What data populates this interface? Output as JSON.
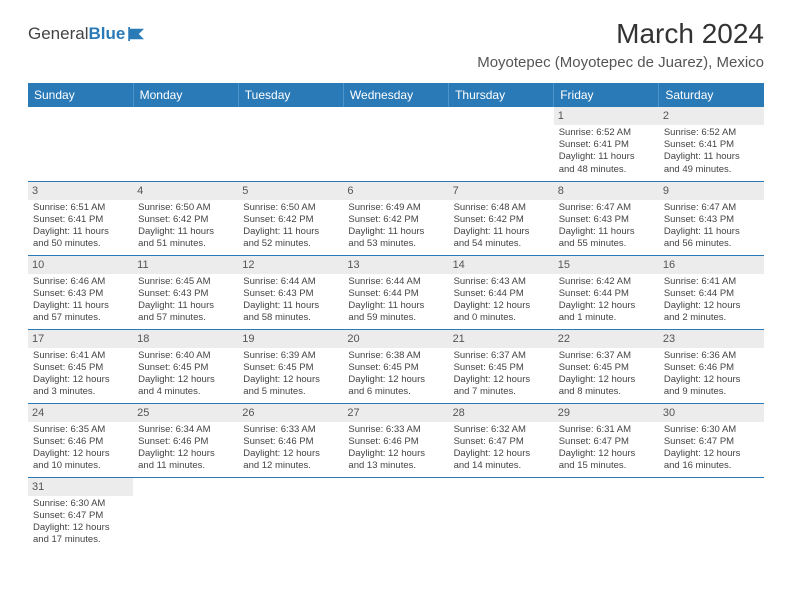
{
  "logo": {
    "text_general": "General",
    "text_blue": "Blue"
  },
  "header": {
    "title": "March 2024",
    "location": "Moyotepec (Moyotepec de Juarez), Mexico"
  },
  "days": [
    "Sunday",
    "Monday",
    "Tuesday",
    "Wednesday",
    "Thursday",
    "Friday",
    "Saturday"
  ],
  "colors": {
    "header_bg": "#2a7ab8",
    "header_text": "#ffffff",
    "row_border": "#2a7ab8",
    "daynum_bg": "#ececec",
    "text": "#444444"
  },
  "weeks": [
    [
      {
        "n": "",
        "empty": true
      },
      {
        "n": "",
        "empty": true
      },
      {
        "n": "",
        "empty": true
      },
      {
        "n": "",
        "empty": true
      },
      {
        "n": "",
        "empty": true
      },
      {
        "n": "1",
        "sr": "Sunrise: 6:52 AM",
        "ss": "Sunset: 6:41 PM",
        "dl1": "Daylight: 11 hours",
        "dl2": "and 48 minutes."
      },
      {
        "n": "2",
        "sr": "Sunrise: 6:52 AM",
        "ss": "Sunset: 6:41 PM",
        "dl1": "Daylight: 11 hours",
        "dl2": "and 49 minutes."
      }
    ],
    [
      {
        "n": "3",
        "sr": "Sunrise: 6:51 AM",
        "ss": "Sunset: 6:41 PM",
        "dl1": "Daylight: 11 hours",
        "dl2": "and 50 minutes."
      },
      {
        "n": "4",
        "sr": "Sunrise: 6:50 AM",
        "ss": "Sunset: 6:42 PM",
        "dl1": "Daylight: 11 hours",
        "dl2": "and 51 minutes."
      },
      {
        "n": "5",
        "sr": "Sunrise: 6:50 AM",
        "ss": "Sunset: 6:42 PM",
        "dl1": "Daylight: 11 hours",
        "dl2": "and 52 minutes."
      },
      {
        "n": "6",
        "sr": "Sunrise: 6:49 AM",
        "ss": "Sunset: 6:42 PM",
        "dl1": "Daylight: 11 hours",
        "dl2": "and 53 minutes."
      },
      {
        "n": "7",
        "sr": "Sunrise: 6:48 AM",
        "ss": "Sunset: 6:42 PM",
        "dl1": "Daylight: 11 hours",
        "dl2": "and 54 minutes."
      },
      {
        "n": "8",
        "sr": "Sunrise: 6:47 AM",
        "ss": "Sunset: 6:43 PM",
        "dl1": "Daylight: 11 hours",
        "dl2": "and 55 minutes."
      },
      {
        "n": "9",
        "sr": "Sunrise: 6:47 AM",
        "ss": "Sunset: 6:43 PM",
        "dl1": "Daylight: 11 hours",
        "dl2": "and 56 minutes."
      }
    ],
    [
      {
        "n": "10",
        "sr": "Sunrise: 6:46 AM",
        "ss": "Sunset: 6:43 PM",
        "dl1": "Daylight: 11 hours",
        "dl2": "and 57 minutes."
      },
      {
        "n": "11",
        "sr": "Sunrise: 6:45 AM",
        "ss": "Sunset: 6:43 PM",
        "dl1": "Daylight: 11 hours",
        "dl2": "and 57 minutes."
      },
      {
        "n": "12",
        "sr": "Sunrise: 6:44 AM",
        "ss": "Sunset: 6:43 PM",
        "dl1": "Daylight: 11 hours",
        "dl2": "and 58 minutes."
      },
      {
        "n": "13",
        "sr": "Sunrise: 6:44 AM",
        "ss": "Sunset: 6:44 PM",
        "dl1": "Daylight: 11 hours",
        "dl2": "and 59 minutes."
      },
      {
        "n": "14",
        "sr": "Sunrise: 6:43 AM",
        "ss": "Sunset: 6:44 PM",
        "dl1": "Daylight: 12 hours",
        "dl2": "and 0 minutes."
      },
      {
        "n": "15",
        "sr": "Sunrise: 6:42 AM",
        "ss": "Sunset: 6:44 PM",
        "dl1": "Daylight: 12 hours",
        "dl2": "and 1 minute."
      },
      {
        "n": "16",
        "sr": "Sunrise: 6:41 AM",
        "ss": "Sunset: 6:44 PM",
        "dl1": "Daylight: 12 hours",
        "dl2": "and 2 minutes."
      }
    ],
    [
      {
        "n": "17",
        "sr": "Sunrise: 6:41 AM",
        "ss": "Sunset: 6:45 PM",
        "dl1": "Daylight: 12 hours",
        "dl2": "and 3 minutes."
      },
      {
        "n": "18",
        "sr": "Sunrise: 6:40 AM",
        "ss": "Sunset: 6:45 PM",
        "dl1": "Daylight: 12 hours",
        "dl2": "and 4 minutes."
      },
      {
        "n": "19",
        "sr": "Sunrise: 6:39 AM",
        "ss": "Sunset: 6:45 PM",
        "dl1": "Daylight: 12 hours",
        "dl2": "and 5 minutes."
      },
      {
        "n": "20",
        "sr": "Sunrise: 6:38 AM",
        "ss": "Sunset: 6:45 PM",
        "dl1": "Daylight: 12 hours",
        "dl2": "and 6 minutes."
      },
      {
        "n": "21",
        "sr": "Sunrise: 6:37 AM",
        "ss": "Sunset: 6:45 PM",
        "dl1": "Daylight: 12 hours",
        "dl2": "and 7 minutes."
      },
      {
        "n": "22",
        "sr": "Sunrise: 6:37 AM",
        "ss": "Sunset: 6:45 PM",
        "dl1": "Daylight: 12 hours",
        "dl2": "and 8 minutes."
      },
      {
        "n": "23",
        "sr": "Sunrise: 6:36 AM",
        "ss": "Sunset: 6:46 PM",
        "dl1": "Daylight: 12 hours",
        "dl2": "and 9 minutes."
      }
    ],
    [
      {
        "n": "24",
        "sr": "Sunrise: 6:35 AM",
        "ss": "Sunset: 6:46 PM",
        "dl1": "Daylight: 12 hours",
        "dl2": "and 10 minutes."
      },
      {
        "n": "25",
        "sr": "Sunrise: 6:34 AM",
        "ss": "Sunset: 6:46 PM",
        "dl1": "Daylight: 12 hours",
        "dl2": "and 11 minutes."
      },
      {
        "n": "26",
        "sr": "Sunrise: 6:33 AM",
        "ss": "Sunset: 6:46 PM",
        "dl1": "Daylight: 12 hours",
        "dl2": "and 12 minutes."
      },
      {
        "n": "27",
        "sr": "Sunrise: 6:33 AM",
        "ss": "Sunset: 6:46 PM",
        "dl1": "Daylight: 12 hours",
        "dl2": "and 13 minutes."
      },
      {
        "n": "28",
        "sr": "Sunrise: 6:32 AM",
        "ss": "Sunset: 6:47 PM",
        "dl1": "Daylight: 12 hours",
        "dl2": "and 14 minutes."
      },
      {
        "n": "29",
        "sr": "Sunrise: 6:31 AM",
        "ss": "Sunset: 6:47 PM",
        "dl1": "Daylight: 12 hours",
        "dl2": "and 15 minutes."
      },
      {
        "n": "30",
        "sr": "Sunrise: 6:30 AM",
        "ss": "Sunset: 6:47 PM",
        "dl1": "Daylight: 12 hours",
        "dl2": "and 16 minutes."
      }
    ],
    [
      {
        "n": "31",
        "sr": "Sunrise: 6:30 AM",
        "ss": "Sunset: 6:47 PM",
        "dl1": "Daylight: 12 hours",
        "dl2": "and 17 minutes."
      },
      {
        "n": "",
        "empty": true
      },
      {
        "n": "",
        "empty": true
      },
      {
        "n": "",
        "empty": true
      },
      {
        "n": "",
        "empty": true
      },
      {
        "n": "",
        "empty": true
      },
      {
        "n": "",
        "empty": true
      }
    ]
  ]
}
